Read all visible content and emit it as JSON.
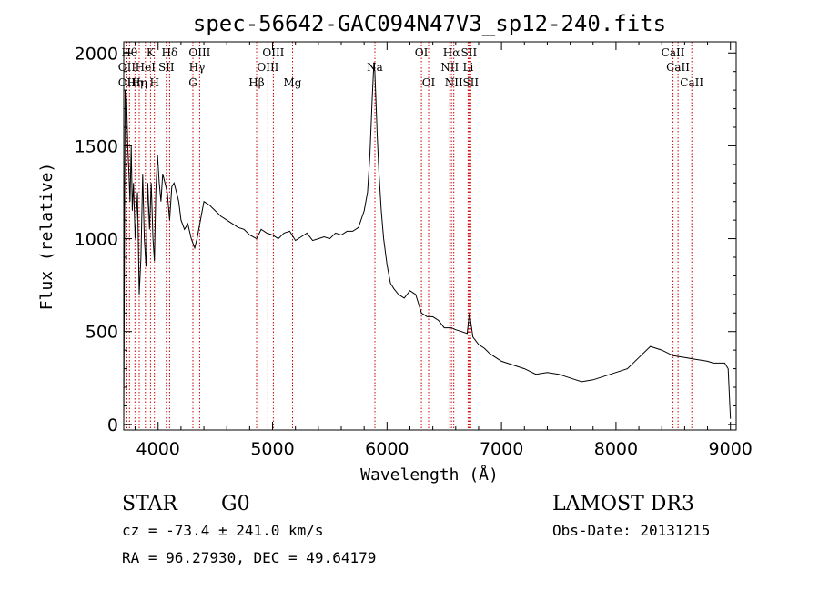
{
  "chart_data": {
    "type": "line",
    "title": "spec-56642-GAC094N47V3_sp12-240.fits",
    "xlabel": "Wavelength (Å)",
    "ylabel": "Flux (relative)",
    "xlim": [
      3700,
      9050
    ],
    "ylim": [
      -30,
      2060
    ],
    "x_ticks": [
      4000,
      5000,
      6000,
      7000,
      8000,
      9000
    ],
    "y_ticks": [
      0,
      500,
      1000,
      1500,
      2000
    ],
    "x_tick_labels": [
      "4000",
      "5000",
      "6000",
      "7000",
      "8000",
      "9000"
    ],
    "y_tick_labels": [
      "0",
      "500",
      "1000",
      "1500",
      "2000"
    ],
    "line_color": "#000000",
    "marker_color": "#cc0000",
    "series": [
      {
        "x": [
          3700,
          3712,
          3725,
          3735,
          3745,
          3755,
          3765,
          3775,
          3785,
          3800,
          3820,
          3835,
          3850,
          3865,
          3880,
          3895,
          3910,
          3925,
          3940,
          3955,
          3968,
          3980,
          3995,
          4010,
          4025,
          4040,
          4060,
          4080,
          4101,
          4120,
          4140,
          4160,
          4180,
          4200,
          4230,
          4260,
          4290,
          4320,
          4340,
          4370,
          4400,
          4450,
          4500,
          4550,
          4600,
          4650,
          4700,
          4750,
          4800,
          4861,
          4900,
          4950,
          5000,
          5050,
          5100,
          5150,
          5200,
          5250,
          5300,
          5350,
          5400,
          5450,
          5500,
          5550,
          5600,
          5650,
          5700,
          5750,
          5800,
          5830,
          5850,
          5870,
          5885,
          5893,
          5900,
          5915,
          5930,
          5950,
          5970,
          6000,
          6030,
          6060,
          6100,
          6150,
          6200,
          6250,
          6300,
          6350,
          6400,
          6450,
          6500,
          6563,
          6600,
          6650,
          6700,
          6720,
          6750,
          6800,
          6850,
          6900,
          6950,
          7000,
          7100,
          7200,
          7300,
          7400,
          7500,
          7600,
          7700,
          7800,
          7900,
          8000,
          8100,
          8200,
          8300,
          8400,
          8500,
          8600,
          8700,
          8800,
          8850,
          8900,
          8950,
          8980,
          9000
        ],
        "y": [
          20,
          1800,
          1750,
          1500,
          1350,
          1200,
          1500,
          1150,
          1300,
          1000,
          1250,
          700,
          900,
          1350,
          1000,
          850,
          1300,
          1050,
          1300,
          1000,
          880,
          1250,
          1450,
          1300,
          1200,
          1350,
          1300,
          1250,
          1100,
          1280,
          1300,
          1250,
          1200,
          1100,
          1050,
          1080,
          1000,
          950,
          1000,
          1100,
          1200,
          1180,
          1150,
          1120,
          1100,
          1080,
          1060,
          1050,
          1020,
          1000,
          1050,
          1030,
          1020,
          1000,
          1030,
          1040,
          990,
          1010,
          1030,
          990,
          1000,
          1010,
          1000,
          1030,
          1020,
          1040,
          1040,
          1060,
          1150,
          1250,
          1450,
          1750,
          1950,
          1900,
          1800,
          1550,
          1350,
          1150,
          1000,
          860,
          760,
          730,
          700,
          680,
          720,
          700,
          600,
          580,
          580,
          560,
          520,
          520,
          510,
          500,
          490,
          600,
          470,
          430,
          410,
          380,
          360,
          340,
          320,
          300,
          270,
          280,
          270,
          250,
          230,
          240,
          260,
          280,
          300,
          360,
          420,
          400,
          370,
          360,
          350,
          340,
          330,
          330,
          330,
          300,
          30
        ]
      }
    ],
    "spectral_lines": [
      {
        "wave": 3727,
        "label": "OII",
        "row": 2
      },
      {
        "wave": 3727,
        "label": "OII",
        "row": 3
      },
      {
        "wave": 3750,
        "label": "Hθ",
        "row": 1
      },
      {
        "wave": 3798,
        "label": "Hη",
        "row": 3
      },
      {
        "wave": 3835,
        "label": "Hη",
        "row": 3
      },
      {
        "wave": 3889,
        "label": "HeI",
        "row": 2
      },
      {
        "wave": 3934,
        "label": "K",
        "row": 1
      },
      {
        "wave": 3968,
        "label": "H",
        "row": 3
      },
      {
        "wave": 4072,
        "label": "SII",
        "row": 2
      },
      {
        "wave": 4101,
        "label": "Hδ",
        "row": 1
      },
      {
        "wave": 4304,
        "label": "G",
        "row": 3
      },
      {
        "wave": 4340,
        "label": "Hγ",
        "row": 2
      },
      {
        "wave": 4363,
        "label": "OIII",
        "row": 1
      },
      {
        "wave": 4861,
        "label": "Hβ",
        "row": 3
      },
      {
        "wave": 4959,
        "label": "OIII",
        "row": 2
      },
      {
        "wave": 5007,
        "label": "OIII",
        "row": 1
      },
      {
        "wave": 5175,
        "label": "Mg",
        "row": 3
      },
      {
        "wave": 5894,
        "label": "Na",
        "row": 2
      },
      {
        "wave": 6300,
        "label": "OI",
        "row": 1
      },
      {
        "wave": 6363,
        "label": "OI",
        "row": 3
      },
      {
        "wave": 6548,
        "label": "NII",
        "row": 2
      },
      {
        "wave": 6563,
        "label": "Hα",
        "row": 1
      },
      {
        "wave": 6583,
        "label": "NII",
        "row": 3
      },
      {
        "wave": 6708,
        "label": "Li",
        "row": 2
      },
      {
        "wave": 6716,
        "label": "SII",
        "row": 1
      },
      {
        "wave": 6731,
        "label": "SII",
        "row": 3
      },
      {
        "wave": 8498,
        "label": "CaII",
        "row": 1
      },
      {
        "wave": 8542,
        "label": "CaII",
        "row": 2
      },
      {
        "wave": 8662,
        "label": "CaII",
        "row": 3
      }
    ]
  },
  "info": {
    "type_label": "STAR",
    "subclass": "G0",
    "survey": "LAMOST DR3",
    "cz_line": "cz = -73.4 ± 241.0 km/s",
    "obs_date_line": "Obs-Date: 20131215",
    "radec_line": "RA =  96.27930, DEC =  49.64179"
  }
}
